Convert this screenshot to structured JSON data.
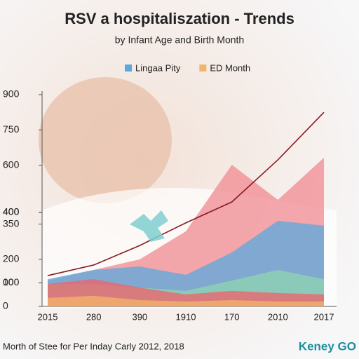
{
  "chart_data": {
    "type": "area",
    "title": "RSV a hospitaliszation - Trends",
    "subtitle": "by Infant Age and Birth Month",
    "footer": "Morth of Stee for Per Inday Carly 2012, 2018",
    "brand": "Keney GO",
    "legend": "top",
    "categories": [
      "2015",
      "280",
      "390",
      "1910",
      "170",
      "2010",
      "2017"
    ],
    "ylim": [
      0,
      900
    ],
    "yticks": [
      0,
      {
        "value": 100,
        "label": "00"
      },
      100,
      350,
      400,
      400,
      600,
      200,
      750,
      900
    ],
    "series": [
      {
        "color": "#f08a90",
        "values": [
          110,
          155,
          200,
          319,
          602,
          453,
          632
        ]
      },
      {
        "name": "Lingaa Pity",
        "color": "#5aa8dc",
        "values": [
          116,
          155,
          170,
          134,
          229,
          364,
          343
        ]
      },
      {
        "color": "#8fd6b0",
        "values": [
          95,
          95,
          80,
          66,
          110,
          155,
          116
        ]
      },
      {
        "color": "#f2606a",
        "values": [
          95,
          116,
          80,
          51,
          66,
          57,
          51
        ]
      },
      {
        "name": "ED Month",
        "color": "#f4b46a",
        "values": [
          36,
          45,
          27,
          21,
          27,
          21,
          21
        ]
      },
      {
        "type": "line",
        "color": "#8b1a22",
        "values": [
          131,
          176,
          259,
          355,
          444,
          623,
          825
        ]
      }
    ]
  }
}
